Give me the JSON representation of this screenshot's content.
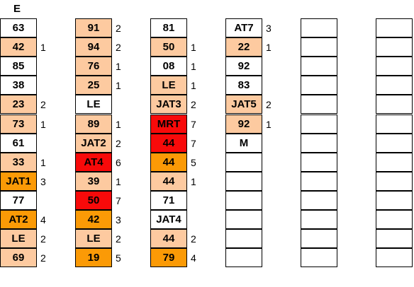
{
  "header": "E",
  "colors": {
    "light": "#fdcaa0",
    "orange": "#fb9a06",
    "red": "#f80a0a",
    "white": "#ffffff"
  },
  "columns": [
    {
      "cells": [
        {
          "t": "63",
          "n": "",
          "c": "w"
        },
        {
          "t": "42",
          "n": "1",
          "c": "l"
        },
        {
          "t": "85",
          "n": "",
          "c": "w"
        },
        {
          "t": "38",
          "n": "",
          "c": "w"
        },
        {
          "t": "23",
          "n": "2",
          "c": "l"
        },
        {
          "t": "73",
          "n": "1",
          "c": "l"
        },
        {
          "t": "61",
          "n": "",
          "c": "w"
        },
        {
          "t": "33",
          "n": "1",
          "c": "l"
        },
        {
          "t": "JAT1",
          "n": "3",
          "c": "o"
        },
        {
          "t": "77",
          "n": "",
          "c": "w"
        },
        {
          "t": "AT2",
          "n": "4",
          "c": "o"
        },
        {
          "t": "LE",
          "n": "2",
          "c": "l"
        },
        {
          "t": "69",
          "n": "2",
          "c": "l"
        }
      ]
    },
    {
      "cells": [
        {
          "t": "91",
          "n": "2",
          "c": "l"
        },
        {
          "t": "94",
          "n": "2",
          "c": "l"
        },
        {
          "t": "76",
          "n": "1",
          "c": "l"
        },
        {
          "t": "25",
          "n": "1",
          "c": "l"
        },
        {
          "t": "LE",
          "n": "",
          "c": "w"
        },
        {
          "t": "89",
          "n": "1",
          "c": "l"
        },
        {
          "t": "JAT2",
          "n": "2",
          "c": "l"
        },
        {
          "t": "AT4",
          "n": "6",
          "c": "r"
        },
        {
          "t": "39",
          "n": "1",
          "c": "l"
        },
        {
          "t": "50",
          "n": "7",
          "c": "r"
        },
        {
          "t": "42",
          "n": "3",
          "c": "o"
        },
        {
          "t": "LE",
          "n": "2",
          "c": "l"
        },
        {
          "t": "19",
          "n": "5",
          "c": "o"
        }
      ]
    },
    {
      "cells": [
        {
          "t": "81",
          "n": "",
          "c": "w"
        },
        {
          "t": "50",
          "n": "1",
          "c": "l"
        },
        {
          "t": "08",
          "n": "1",
          "c": "w"
        },
        {
          "t": "LE",
          "n": "1",
          "c": "l"
        },
        {
          "t": "JAT3",
          "n": "2",
          "c": "l"
        },
        {
          "t": "MRT",
          "n": "7",
          "c": "r"
        },
        {
          "t": "44",
          "n": "7",
          "c": "r"
        },
        {
          "t": "44",
          "n": "5",
          "c": "o"
        },
        {
          "t": "44",
          "n": "1",
          "c": "l"
        },
        {
          "t": "71",
          "n": "",
          "c": "w"
        },
        {
          "t": "JAT4",
          "n": "",
          "c": "w"
        },
        {
          "t": "44",
          "n": "2",
          "c": "l"
        },
        {
          "t": "79",
          "n": "4",
          "c": "o"
        }
      ]
    },
    {
      "cells": [
        {
          "t": "AT7",
          "n": "3",
          "c": "w"
        },
        {
          "t": "22",
          "n": "1",
          "c": "l"
        },
        {
          "t": "92",
          "n": "",
          "c": "w"
        },
        {
          "t": "83",
          "n": "",
          "c": "w"
        },
        {
          "t": "JAT5",
          "n": "2",
          "c": "l"
        },
        {
          "t": "92",
          "n": "1",
          "c": "l"
        },
        {
          "t": "M",
          "n": "",
          "c": "w"
        },
        {
          "t": "",
          "n": "",
          "c": "w"
        },
        {
          "t": "",
          "n": "",
          "c": "w"
        },
        {
          "t": "",
          "n": "",
          "c": "w"
        },
        {
          "t": "",
          "n": "",
          "c": "w"
        },
        {
          "t": "",
          "n": "",
          "c": "w"
        },
        {
          "t": "",
          "n": "",
          "c": "w"
        }
      ]
    },
    {
      "cells": [
        {
          "t": "",
          "n": "",
          "c": "w"
        },
        {
          "t": "",
          "n": "",
          "c": "w"
        },
        {
          "t": "",
          "n": "",
          "c": "w"
        },
        {
          "t": "",
          "n": "",
          "c": "w"
        },
        {
          "t": "",
          "n": "",
          "c": "w"
        },
        {
          "t": "",
          "n": "",
          "c": "w"
        },
        {
          "t": "",
          "n": "",
          "c": "w"
        },
        {
          "t": "",
          "n": "",
          "c": "w"
        },
        {
          "t": "",
          "n": "",
          "c": "w"
        },
        {
          "t": "",
          "n": "",
          "c": "w"
        },
        {
          "t": "",
          "n": "",
          "c": "w"
        },
        {
          "t": "",
          "n": "",
          "c": "w"
        },
        {
          "t": "",
          "n": "",
          "c": "w"
        }
      ]
    },
    {
      "cells": [
        {
          "t": "",
          "n": "",
          "c": "w"
        },
        {
          "t": "",
          "n": "",
          "c": "w"
        },
        {
          "t": "",
          "n": "",
          "c": "w"
        },
        {
          "t": "",
          "n": "",
          "c": "w"
        },
        {
          "t": "",
          "n": "",
          "c": "w"
        },
        {
          "t": "",
          "n": "",
          "c": "w"
        },
        {
          "t": "",
          "n": "",
          "c": "w"
        },
        {
          "t": "",
          "n": "",
          "c": "w"
        },
        {
          "t": "",
          "n": "",
          "c": "w"
        },
        {
          "t": "",
          "n": "",
          "c": "w"
        },
        {
          "t": "",
          "n": "",
          "c": "w"
        },
        {
          "t": "",
          "n": "",
          "c": "w"
        },
        {
          "t": "",
          "n": "",
          "c": "w"
        }
      ]
    }
  ]
}
